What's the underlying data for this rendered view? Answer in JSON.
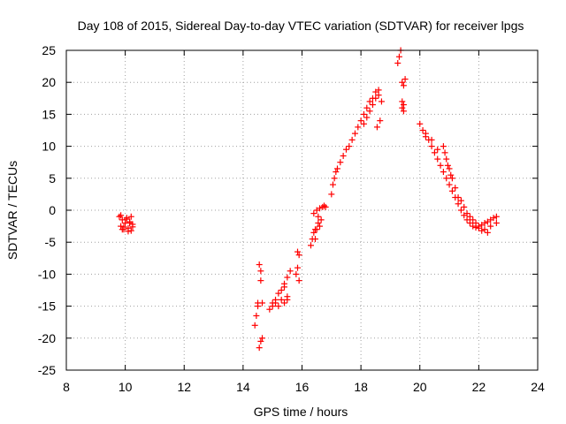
{
  "chart_data": {
    "type": "scatter",
    "title": "Day 108 of 2015, Sidereal Day-to-day VTEC variation (SDTVAR) for receiver lpgs",
    "xlabel": "GPS time / hours",
    "ylabel": "SDTVAR / TECUs",
    "xlim": [
      8,
      24
    ],
    "ylim": [
      -25,
      25
    ],
    "xticks": [
      "8",
      "10",
      "12",
      "14",
      "16",
      "18",
      "20",
      "22",
      "24"
    ],
    "yticks": [
      "25",
      "20",
      "15",
      "10",
      "5",
      "0",
      "-5",
      "-10",
      "-15",
      "-20",
      "-25"
    ],
    "grid": true,
    "marker": "plus",
    "color": "#ff0000",
    "series": [
      {
        "name": "SDTVAR",
        "x": [
          9.8,
          9.85,
          9.9,
          9.95,
          10.0,
          10.05,
          10.1,
          10.15,
          10.2,
          10.25,
          9.85,
          9.95,
          10.05,
          10.15,
          10.2,
          9.9,
          10.1,
          10.25,
          14.4,
          14.45,
          14.5,
          14.55,
          14.6,
          14.65,
          14.55,
          14.6,
          14.65,
          14.5,
          14.6,
          14.9,
          15.0,
          15.1,
          15.2,
          15.3,
          15.4,
          15.5,
          15.6,
          15.2,
          15.3,
          15.4,
          15.5,
          15.0,
          15.1,
          15.5,
          15.4,
          15.85,
          15.9,
          15.85,
          15.9,
          15.8,
          16.3,
          16.35,
          16.4,
          16.45,
          16.5,
          16.55,
          16.6,
          16.65,
          16.4,
          16.5,
          16.6,
          16.7,
          16.75,
          16.8,
          16.45,
          16.55,
          17.0,
          17.05,
          17.1,
          17.15,
          17.2,
          17.3,
          17.4,
          17.5,
          17.6,
          17.7,
          17.8,
          17.9,
          18.0,
          18.1,
          18.2,
          18.3,
          18.4,
          18.5,
          18.6,
          18.7,
          18.1,
          18.2,
          18.3,
          18.4,
          18.5,
          18.6,
          18.55,
          18.65,
          19.25,
          19.3,
          19.35,
          19.4,
          19.45,
          19.5,
          19.4,
          19.45,
          19.4,
          19.45,
          20.0,
          20.1,
          20.2,
          20.3,
          20.4,
          20.5,
          20.6,
          20.7,
          20.8,
          20.9,
          21.0,
          21.1,
          21.2,
          21.3,
          21.4,
          21.5,
          21.6,
          21.7,
          21.8,
          21.9,
          22.0,
          22.1,
          22.2,
          22.3,
          22.4,
          22.5,
          22.6,
          20.8,
          20.85,
          20.9,
          20.95,
          21.0,
          21.05,
          21.1,
          20.2,
          20.4,
          20.6,
          21.2,
          21.4,
          21.6,
          21.8,
          22.0,
          22.2,
          22.4,
          22.6,
          21.3,
          21.5,
          21.7,
          21.9,
          22.1,
          22.3
        ],
        "y": [
          -1.0,
          -2.5,
          -1.5,
          -3.0,
          -2.0,
          -1.2,
          -2.8,
          -1.8,
          -3.2,
          -2.2,
          -0.8,
          -2.6,
          -1.4,
          -2.0,
          -1.0,
          -3.0,
          -3.3,
          -2.6,
          -18.0,
          -16.5,
          -14.5,
          -8.5,
          -9.5,
          -14.5,
          -21.5,
          -20.5,
          -20.0,
          -15.0,
          -11.0,
          -15.5,
          -14.5,
          -14.0,
          -13.0,
          -12.5,
          -11.5,
          -10.5,
          -9.5,
          -15.0,
          -14.0,
          -14.5,
          -13.5,
          -15.0,
          -14.5,
          -14.0,
          -12.0,
          -6.5,
          -7.0,
          -9.0,
          -11.0,
          -10.0,
          -5.5,
          -4.5,
          -3.5,
          -4.5,
          -3.0,
          -2.0,
          -2.5,
          -1.5,
          -0.5,
          0.0,
          0.3,
          0.5,
          0.7,
          0.5,
          -3.0,
          -1.0,
          2.5,
          4.0,
          5.0,
          6.0,
          6.5,
          7.5,
          8.5,
          9.5,
          10.0,
          11.0,
          12.0,
          13.0,
          14.0,
          15.0,
          16.0,
          17.0,
          17.5,
          18.5,
          18.8,
          17.0,
          13.5,
          14.5,
          15.5,
          16.5,
          17.5,
          18.0,
          13.0,
          14.0,
          23.0,
          24.0,
          25.0,
          20.0,
          19.5,
          20.5,
          16.0,
          15.5,
          17.0,
          16.5,
          13.5,
          12.5,
          11.5,
          11.0,
          10.0,
          9.0,
          8.0,
          7.0,
          6.0,
          5.0,
          4.0,
          3.0,
          2.0,
          1.0,
          0.0,
          -0.8,
          -1.5,
          -2.0,
          -2.5,
          -2.7,
          -2.5,
          -2.3,
          -2.0,
          -1.8,
          -1.5,
          -1.2,
          -1.0,
          10.0,
          9.0,
          8.0,
          7.0,
          6.5,
          5.5,
          5.0,
          12.0,
          11.0,
          9.5,
          3.5,
          1.5,
          -0.5,
          -1.5,
          -2.8,
          -3.0,
          -2.5,
          -2.0,
          2.0,
          0.5,
          -1.0,
          -2.0,
          -3.2,
          -3.5
        ]
      }
    ]
  }
}
